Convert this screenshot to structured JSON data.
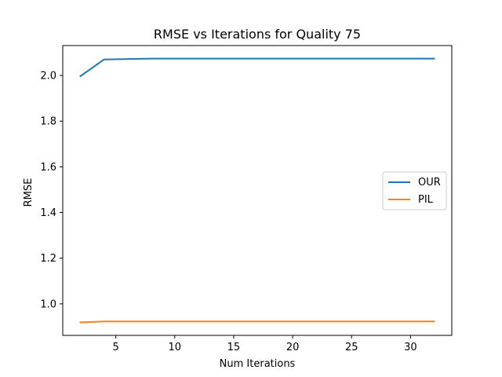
{
  "chart_data": {
    "type": "line",
    "title": "RMSE vs Iterations for Quality 75",
    "xlabel": "Num Iterations",
    "ylabel": "RMSE",
    "x": [
      2,
      4,
      8,
      16,
      32
    ],
    "series": [
      {
        "name": "OUR",
        "color": "#1f77b4",
        "values": [
          1.997,
          2.07,
          2.074,
          2.074,
          2.074
        ]
      },
      {
        "name": "PIL",
        "color": "#ff7f0e",
        "values": [
          0.919,
          0.923,
          0.923,
          0.923,
          0.923
        ]
      }
    ],
    "xlim": [
      0.5,
      33.5
    ],
    "ylim": [
      0.862,
      2.131
    ],
    "xticks": [
      5,
      10,
      15,
      20,
      25,
      30
    ],
    "yticks": [
      1.0,
      1.2,
      1.4,
      1.6,
      1.8,
      2.0
    ],
    "xtick_labels": [
      "5",
      "10",
      "15",
      "20",
      "25",
      "30"
    ],
    "ytick_labels": [
      "1.0",
      "1.2",
      "1.4",
      "1.6",
      "1.8",
      "2.0"
    ],
    "grid": false,
    "legend_position": "center-right"
  }
}
